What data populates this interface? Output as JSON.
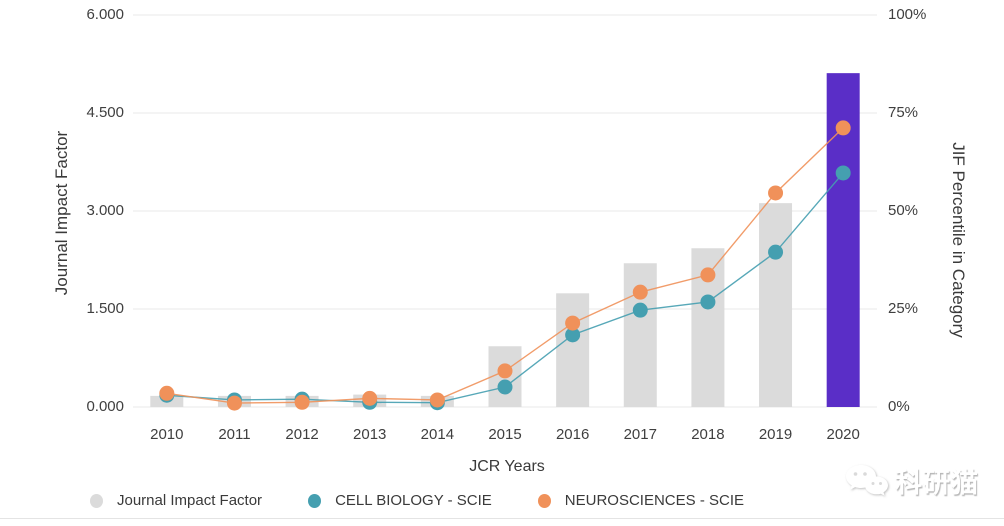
{
  "chart_data": {
    "type": "bar-line-combo",
    "categories": [
      "2010",
      "2011",
      "2012",
      "2013",
      "2014",
      "2015",
      "2016",
      "2017",
      "2018",
      "2019",
      "2020"
    ],
    "bar_series": {
      "name": "Journal Impact Factor",
      "axis": "left",
      "values": [
        0.17,
        0.17,
        0.17,
        0.19,
        0.17,
        0.93,
        1.74,
        2.2,
        2.43,
        3.12,
        5.11
      ],
      "color": "#DBDBDB",
      "highlight_index": 10,
      "highlight_color": "#5A2EC7"
    },
    "line_series": [
      {
        "name": "CELL BIOLOGY - SCIE",
        "axis": "right",
        "values": [
          3.0,
          1.8,
          2.0,
          1.2,
          1.1,
          5.1,
          18.4,
          24.7,
          26.8,
          39.5,
          59.7
        ],
        "color": "#459FB0"
      },
      {
        "name": "NEUROSCIENCES - SCIE",
        "axis": "right",
        "values": [
          3.5,
          1.0,
          1.2,
          2.2,
          1.8,
          9.2,
          21.4,
          29.3,
          33.7,
          54.6,
          71.2
        ],
        "color": "#F0915A"
      }
    ],
    "xlabel": "JCR Years",
    "left_axis": {
      "label": "Journal Impact Factor",
      "ticks": [
        "0.000",
        "1.500",
        "3.000",
        "4.500",
        "6.000"
      ],
      "range": [
        0,
        6
      ]
    },
    "right_axis": {
      "label": "JIF Percentile in Category",
      "ticks": [
        "0%",
        "25%",
        "50%",
        "75%",
        "100%"
      ],
      "range": [
        0,
        100
      ]
    },
    "grid": true,
    "gridline_color": "#e8e8e8",
    "legend_position": "bottom"
  },
  "legend": {
    "items": [
      {
        "label": "Journal Impact Factor",
        "color": "#DBDBDB"
      },
      {
        "label": "CELL BIOLOGY - SCIE",
        "color": "#459FB0"
      },
      {
        "label": "NEUROSCIENCES - SCIE",
        "color": "#F0915A"
      }
    ]
  },
  "watermark": {
    "text": "科研猫",
    "icon": "wechat-chat-bubbles-icon"
  }
}
